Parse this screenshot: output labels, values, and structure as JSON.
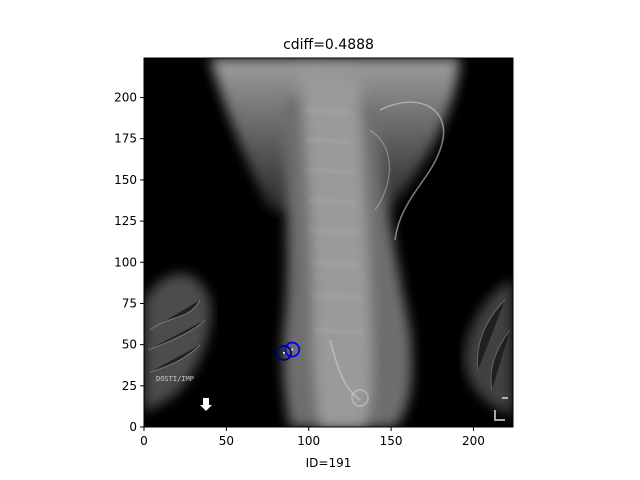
{
  "figure": {
    "title": "cdiff=0.4888",
    "xlabel": "ID=191",
    "x_ticks": [
      "0",
      "50",
      "100",
      "150",
      "200"
    ],
    "y_ticks": [
      "0",
      "25",
      "50",
      "75",
      "100",
      "125",
      "150",
      "175",
      "200"
    ],
    "xlim": [
      0,
      224
    ],
    "ylim": [
      0,
      224
    ],
    "image_overlay_text": "DOSTI/IMP",
    "markers": [
      {
        "label": "marker-1",
        "x": 90,
        "y": 47,
        "color": "#0000ff"
      },
      {
        "label": "marker-2",
        "x": 85,
        "y": 45,
        "color": "#00008b"
      }
    ]
  }
}
